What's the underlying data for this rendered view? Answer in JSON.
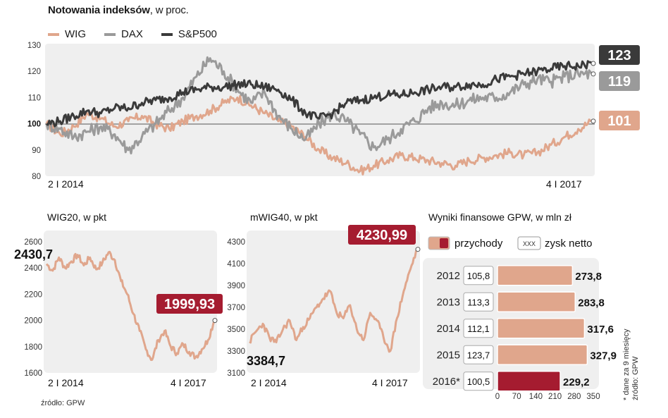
{
  "header": {
    "title_bold": "Notowania indeksów",
    "title_rest": ", w proc."
  },
  "colors": {
    "wig": "#e0a68c",
    "dax": "#9a9a9a",
    "sp500": "#3a3a3a",
    "accent": "#a51c30",
    "panel": "#efefef"
  },
  "source": "źródło: GPW",
  "footnote": "* dane za 9 miesięcy",
  "footnote_source": "źródło: GPW",
  "chart_data": [
    {
      "id": "indices",
      "type": "line",
      "title": "Notowania indeksów, w proc.",
      "x_start_label": "2 I 2014",
      "x_end_label": "4 I 2017",
      "ylim": [
        80,
        130
      ],
      "yticks": [
        80,
        90,
        100,
        110,
        120,
        130
      ],
      "reference_line": 100,
      "series": [
        {
          "name": "WIG",
          "end_label": "123",
          "end_label_for": "S&P500"
        },
        {
          "name": "DAX"
        },
        {
          "name": "S&P500"
        }
      ],
      "series_points": {
        "WIG": [
          100,
          96,
          99,
          104,
          102,
          99,
          101,
          103,
          100,
          98,
          101,
          103,
          105,
          108,
          110,
          107,
          104,
          101,
          99,
          95,
          90,
          87,
          85,
          82,
          84,
          86,
          88,
          87,
          86,
          85,
          84,
          86,
          87,
          88,
          89,
          88,
          89,
          92,
          95,
          98,
          101
        ],
        "DAX": [
          100,
          98,
          95,
          97,
          99,
          96,
          90,
          95,
          100,
          105,
          110,
          118,
          125,
          120,
          113,
          108,
          112,
          103,
          98,
          94,
          100,
          104,
          101,
          96,
          91,
          94,
          98,
          101,
          106,
          108,
          107,
          109,
          110,
          110,
          112,
          115,
          117,
          116,
          118,
          119,
          119
        ],
        "S&P500": [
          100,
          101,
          103,
          105,
          104,
          106,
          106,
          108,
          109,
          110,
          112,
          113,
          114,
          114,
          115,
          115,
          114,
          113,
          109,
          104,
          102,
          104,
          108,
          109,
          110,
          111,
          111,
          112,
          113,
          114,
          114,
          115,
          115,
          117,
          118,
          119,
          120,
          121,
          122,
          122,
          123
        ]
      },
      "end_labels": {
        "S&P500": "123",
        "DAX": "119",
        "WIG": "101"
      }
    },
    {
      "id": "wig20",
      "type": "line",
      "title": "WIG20, w pkt",
      "x_start_label": "2 I 2014",
      "x_end_label": "4 I 2017",
      "ylim": [
        1600,
        2600
      ],
      "yticks": [
        1600,
        1800,
        2000,
        2200,
        2400,
        2600
      ],
      "start_value_label": "2430,7",
      "end_value_label": "1999,93",
      "points": [
        2430.7,
        2380,
        2480,
        2400,
        2450,
        2500,
        2420,
        2480,
        2390,
        2440,
        2520,
        2460,
        2300,
        2200,
        2050,
        1920,
        1780,
        1700,
        1850,
        1920,
        1800,
        1750,
        1820,
        1760,
        1720,
        1780,
        1850,
        1999.93
      ]
    },
    {
      "id": "mwig40",
      "type": "line",
      "title": "mWIG40, w pkt",
      "x_start_label": "2 I 2014",
      "x_end_label": "4 I 2017",
      "ylim": [
        3100,
        4300
      ],
      "yticks": [
        3100,
        3300,
        3500,
        3700,
        3900,
        4100,
        4300
      ],
      "start_value_label": "3384,7",
      "end_value_label": "4230,99",
      "points": [
        3384.7,
        3480,
        3550,
        3420,
        3380,
        3500,
        3580,
        3400,
        3520,
        3600,
        3700,
        3780,
        3850,
        3650,
        3600,
        3720,
        3500,
        3400,
        3650,
        3580,
        3420,
        3300,
        3600,
        3850,
        4050,
        4230.99
      ]
    },
    {
      "id": "gpw",
      "type": "bar",
      "title": "Wyniki finansowe GPW, w mln zł",
      "legend": [
        "przychody",
        "zysk netto"
      ],
      "legend_box_text": "XXX",
      "categories": [
        "2012",
        "2013",
        "2014",
        "2015",
        "2016*"
      ],
      "revenue": [
        273.8,
        283.8,
        317.6,
        327.9,
        229.2
      ],
      "revenue_labels": [
        "273,8",
        "283,8",
        "317,6",
        "327,9",
        "229,2"
      ],
      "net_profit_labels": [
        "105,8",
        "113,3",
        "112,1",
        "123,7",
        "100,5"
      ],
      "xlim": [
        0,
        350
      ],
      "xticks": [
        "0",
        "70",
        "140",
        "210",
        "280",
        "350"
      ]
    }
  ]
}
